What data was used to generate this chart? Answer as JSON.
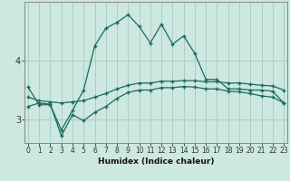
{
  "xlabel": "Humidex (Indice chaleur)",
  "ylabel": "",
  "background_color": "#cce8e0",
  "grid_color": "#aacfc8",
  "line_color": "#1a6b5a",
  "x_values": [
    0,
    1,
    2,
    3,
    4,
    5,
    6,
    7,
    8,
    9,
    10,
    11,
    12,
    13,
    14,
    15,
    16,
    17,
    18,
    19,
    20,
    21,
    22,
    23
  ],
  "y_max": [
    3.55,
    3.25,
    3.25,
    2.82,
    3.15,
    3.5,
    4.25,
    4.55,
    4.65,
    4.78,
    4.58,
    4.3,
    4.62,
    4.28,
    4.42,
    4.12,
    3.68,
    3.68,
    3.52,
    3.52,
    3.5,
    3.5,
    3.48,
    3.28
  ],
  "y_mean": [
    3.38,
    3.32,
    3.3,
    3.28,
    3.3,
    3.32,
    3.38,
    3.44,
    3.52,
    3.58,
    3.62,
    3.62,
    3.65,
    3.65,
    3.66,
    3.66,
    3.64,
    3.64,
    3.62,
    3.62,
    3.6,
    3.58,
    3.57,
    3.5
  ],
  "y_min": [
    3.22,
    3.28,
    3.26,
    2.72,
    3.08,
    2.98,
    3.12,
    3.22,
    3.36,
    3.46,
    3.5,
    3.5,
    3.54,
    3.54,
    3.56,
    3.55,
    3.52,
    3.52,
    3.48,
    3.47,
    3.44,
    3.4,
    3.38,
    3.28
  ],
  "ylim": [
    2.6,
    5.0
  ],
  "yticks": [
    3,
    4
  ],
  "xlim": [
    -0.3,
    23.3
  ],
  "marker": "+"
}
